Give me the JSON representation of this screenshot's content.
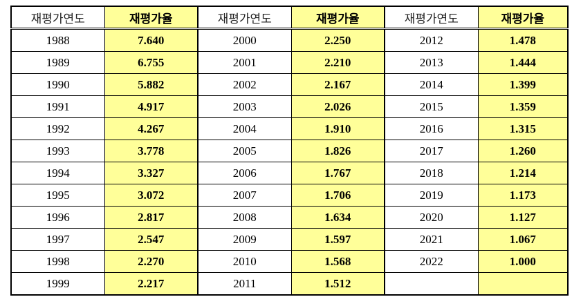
{
  "header": {
    "year_label": "재평가연도",
    "rate_label": "재평가율"
  },
  "rows": [
    [
      {
        "year": "1988",
        "rate": "7.640"
      },
      {
        "year": "2000",
        "rate": "2.250"
      },
      {
        "year": "2012",
        "rate": "1.478"
      }
    ],
    [
      {
        "year": "1989",
        "rate": "6.755"
      },
      {
        "year": "2001",
        "rate": "2.210"
      },
      {
        "year": "2013",
        "rate": "1.444"
      }
    ],
    [
      {
        "year": "1990",
        "rate": "5.882"
      },
      {
        "year": "2002",
        "rate": "2.167"
      },
      {
        "year": "2014",
        "rate": "1.399"
      }
    ],
    [
      {
        "year": "1991",
        "rate": "4.917"
      },
      {
        "year": "2003",
        "rate": "2.026"
      },
      {
        "year": "2015",
        "rate": "1.359"
      }
    ],
    [
      {
        "year": "1992",
        "rate": "4.267"
      },
      {
        "year": "2004",
        "rate": "1.910"
      },
      {
        "year": "2016",
        "rate": "1.315"
      }
    ],
    [
      {
        "year": "1993",
        "rate": "3.778"
      },
      {
        "year": "2005",
        "rate": "1.826"
      },
      {
        "year": "2017",
        "rate": "1.260"
      }
    ],
    [
      {
        "year": "1994",
        "rate": "3.327"
      },
      {
        "year": "2006",
        "rate": "1.767"
      },
      {
        "year": "2018",
        "rate": "1.214"
      }
    ],
    [
      {
        "year": "1995",
        "rate": "3.072"
      },
      {
        "year": "2007",
        "rate": "1.706"
      },
      {
        "year": "2019",
        "rate": "1.173"
      }
    ],
    [
      {
        "year": "1996",
        "rate": "2.817"
      },
      {
        "year": "2008",
        "rate": "1.634"
      },
      {
        "year": "2020",
        "rate": "1.127"
      }
    ],
    [
      {
        "year": "1997",
        "rate": "2.547"
      },
      {
        "year": "2009",
        "rate": "1.597"
      },
      {
        "year": "2021",
        "rate": "1.067"
      }
    ],
    [
      {
        "year": "1998",
        "rate": "2.270"
      },
      {
        "year": "2010",
        "rate": "1.568"
      },
      {
        "year": "2022",
        "rate": "1.000"
      }
    ],
    [
      {
        "year": "1999",
        "rate": "2.217"
      },
      {
        "year": "2011",
        "rate": "1.512"
      },
      {
        "year": "",
        "rate": ""
      }
    ]
  ],
  "colors": {
    "rate_background": "#ffff99",
    "border": "#000000"
  }
}
